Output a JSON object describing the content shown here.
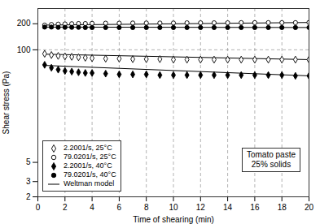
{
  "chart_data": {
    "type": "scatter",
    "annotation": "Tomato paste\n25% solids",
    "x_label": "Time of shearing (min)",
    "y_label": "Shear stress (Pa)",
    "log": "y",
    "xlim": [
      0,
      20
    ],
    "ylim": [
      2,
      300
    ],
    "xticks": [
      0,
      2,
      4,
      6,
      8,
      10,
      12,
      14,
      16,
      18,
      20
    ],
    "yticks": [
      2,
      3,
      5,
      100,
      200
    ],
    "grid": "x",
    "y_reference": 100,
    "legend": "lower left",
    "fit_label": "Weltman model",
    "series": [
      {
        "name": "2.2001/s, 25°C",
        "marker": "diamond-open",
        "color": "black",
        "x": [
          0.5,
          1,
          1.5,
          2,
          2.5,
          3,
          3.5,
          4,
          5,
          6,
          7,
          8,
          9,
          10,
          11,
          12,
          13,
          14,
          15,
          16,
          17,
          18,
          19,
          20
        ],
        "values": [
          90,
          87,
          85,
          84,
          83,
          82,
          81,
          80,
          79,
          79,
          78,
          78,
          78,
          77,
          77,
          77,
          77,
          77,
          77,
          77,
          77,
          77,
          77,
          77
        ],
        "fit_x": [
          0.5,
          20
        ],
        "fit_y": [
          89,
          77
        ]
      },
      {
        "name": "79.0201/s, 25°C",
        "marker": "circle-open",
        "color": "black",
        "x": [
          0.5,
          1,
          1.5,
          2,
          2.5,
          3,
          3.5,
          4,
          5,
          6,
          7,
          8,
          9,
          10,
          11,
          12,
          13,
          14,
          15,
          16,
          17,
          18,
          19,
          20
        ],
        "values": [
          193,
          196,
          198,
          199,
          200,
          201,
          201,
          202,
          203,
          203,
          204,
          204,
          204,
          204,
          205,
          205,
          205,
          205,
          206,
          206,
          206,
          206,
          206,
          207
        ],
        "fit_x": [
          0.5,
          20
        ],
        "fit_y": [
          193,
          207
        ]
      },
      {
        "name": "2.2001/s, 40°C",
        "marker": "diamond",
        "color": "black",
        "x": [
          0.5,
          1,
          1.5,
          2,
          2.5,
          3,
          3.5,
          4,
          5,
          6,
          7,
          8,
          9,
          10,
          11,
          12,
          13,
          14,
          15,
          16,
          17,
          18,
          19,
          20
        ],
        "values": [
          67,
          62,
          59,
          57,
          56,
          55,
          54,
          54,
          53,
          52,
          52,
          52,
          51,
          51,
          51,
          51,
          51,
          51,
          51,
          51,
          51,
          51,
          50,
          50
        ],
        "fit_x": [
          0.5,
          20
        ],
        "fit_y": [
          66,
          50
        ]
      },
      {
        "name": "79.0201/s, 40°C",
        "marker": "circle",
        "color": "black",
        "x": [
          0.5,
          1,
          1.5,
          2,
          2.5,
          3,
          3.5,
          4,
          5,
          6,
          7,
          8,
          9,
          10,
          11,
          12,
          13,
          14,
          15,
          16,
          17,
          18,
          19,
          20
        ],
        "values": [
          183,
          183,
          182,
          182,
          182,
          182,
          181,
          181,
          181,
          181,
          181,
          181,
          181,
          181,
          181,
          181,
          181,
          181,
          181,
          181,
          181,
          181,
          181,
          181
        ],
        "fit_x": [
          0.5,
          20
        ],
        "fit_y": [
          183,
          181
        ]
      }
    ]
  }
}
